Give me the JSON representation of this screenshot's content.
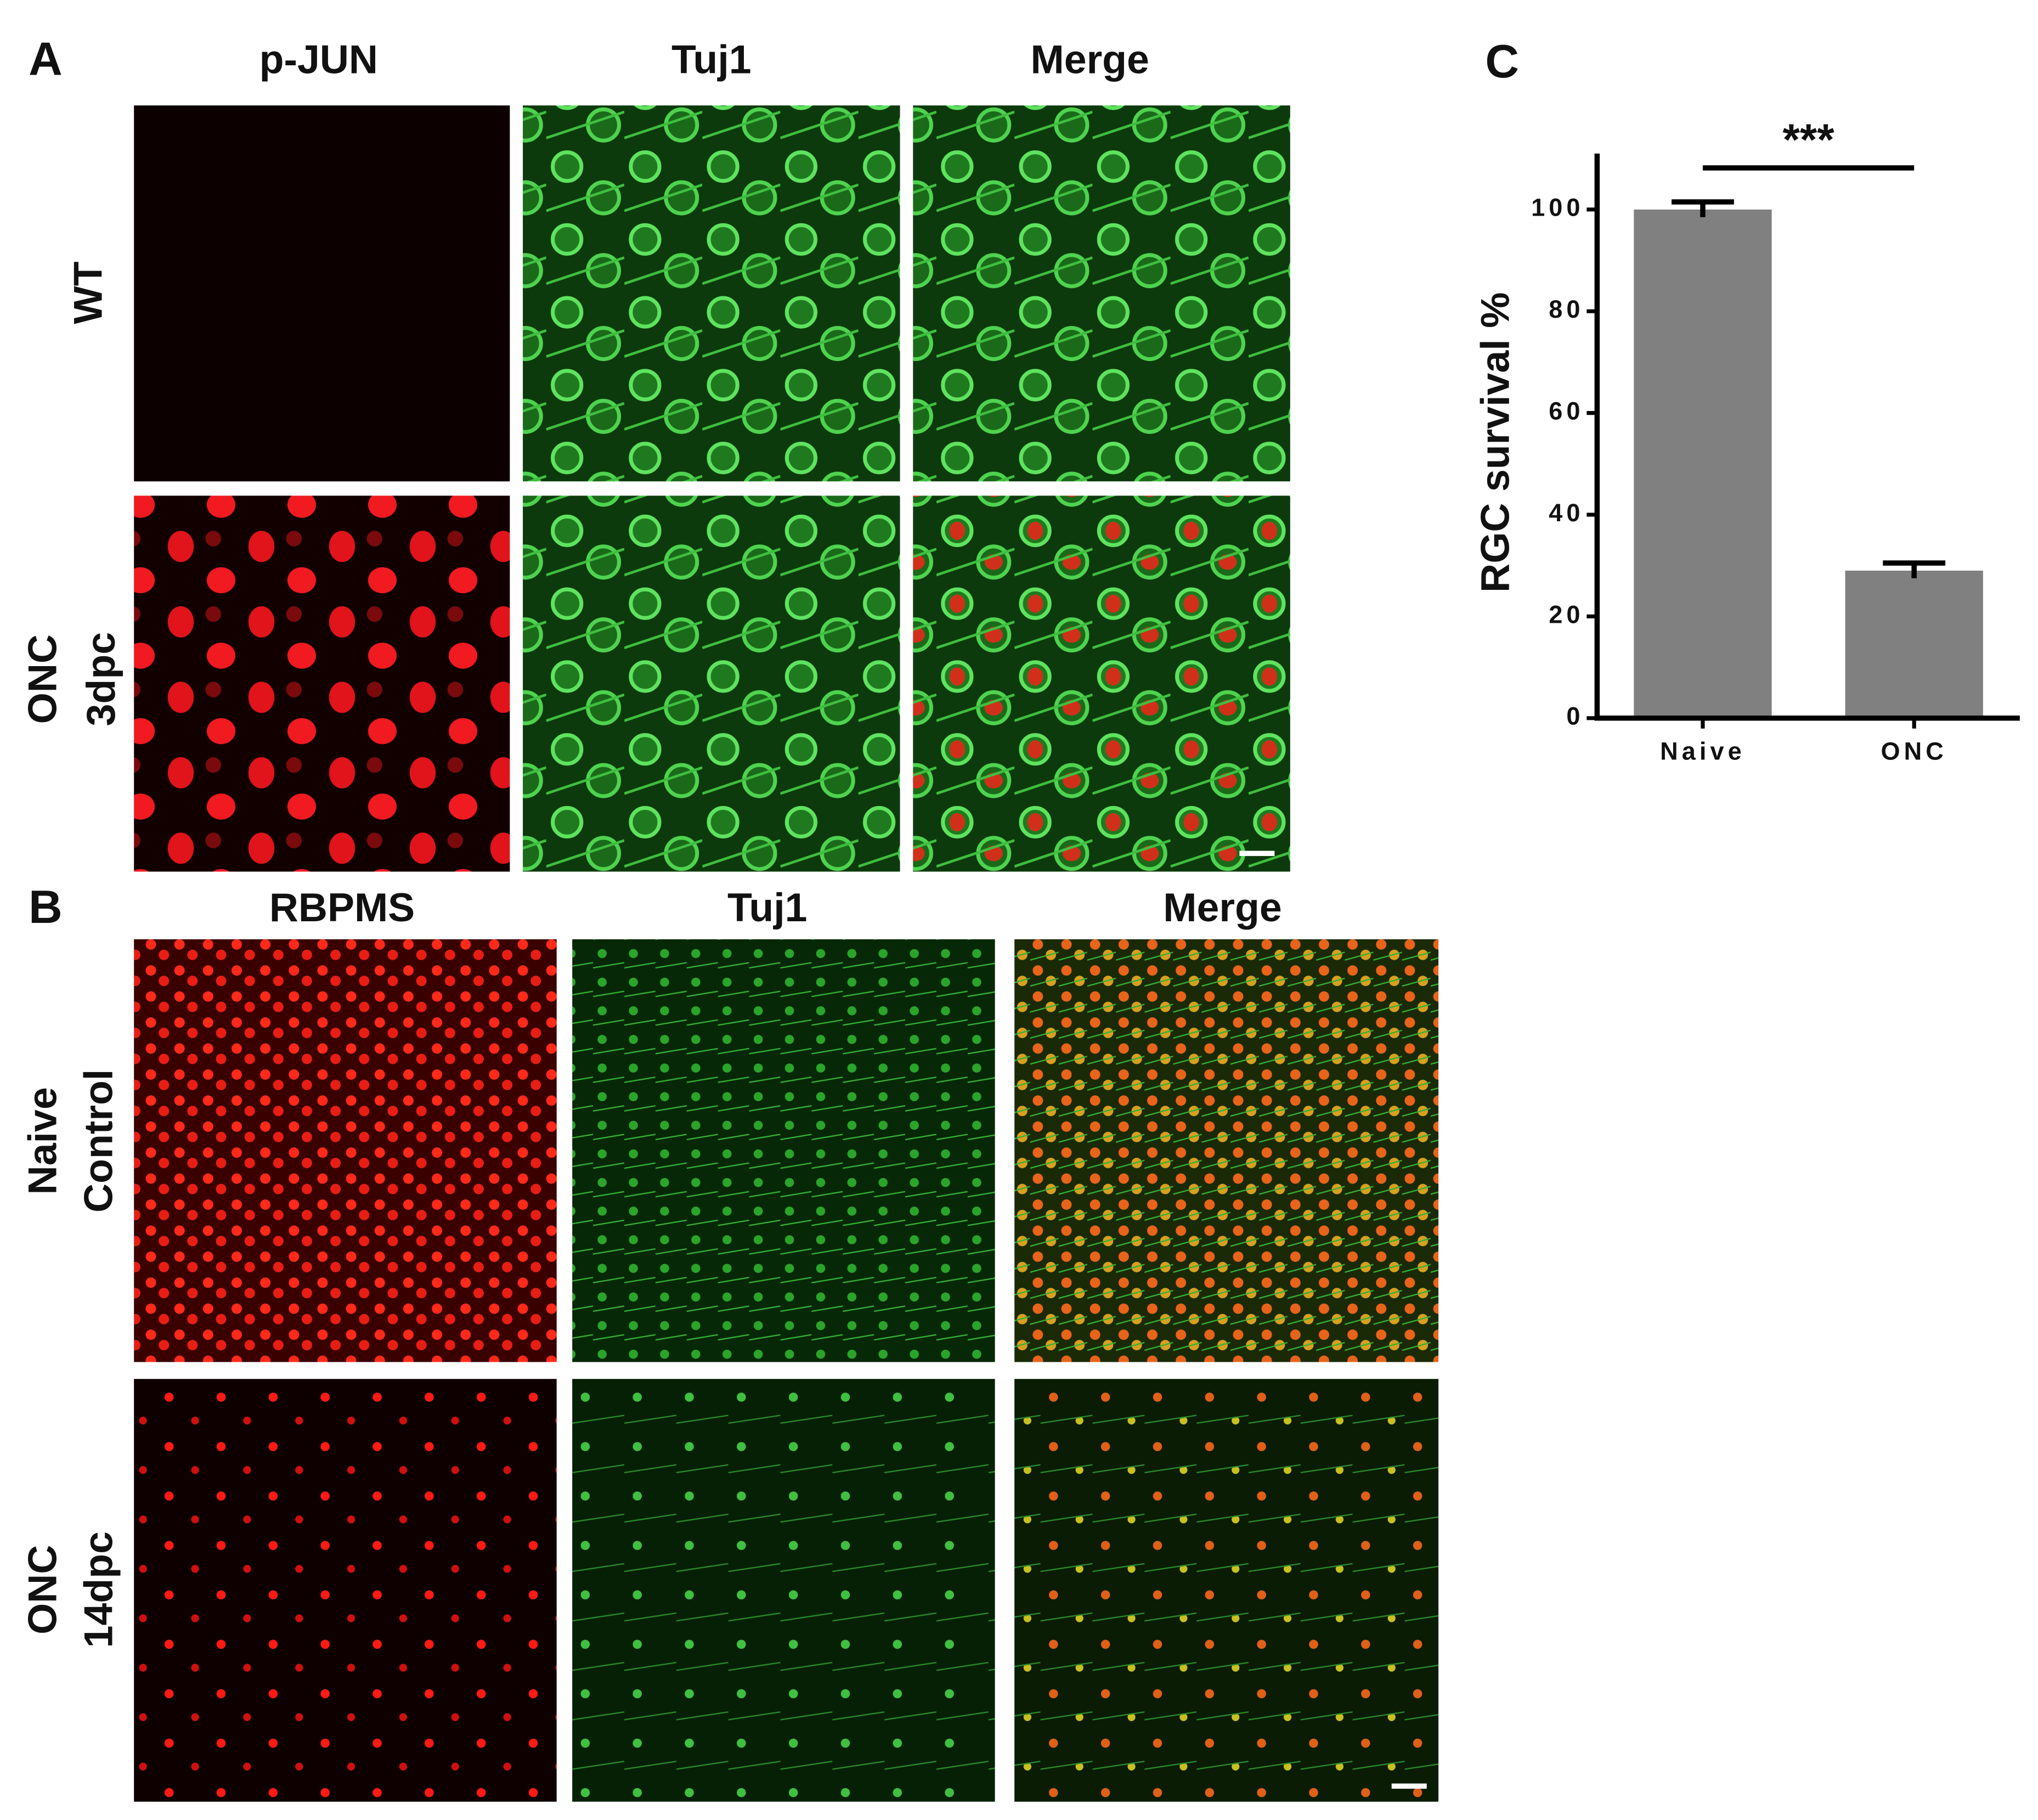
{
  "panel_a": {
    "label": "A",
    "columns": [
      "p-JUN",
      "Tuj1",
      "Merge"
    ],
    "rows": [
      [
        "WT"
      ],
      [
        "ONC",
        "3dpc"
      ]
    ]
  },
  "panel_b": {
    "label": "B",
    "columns": [
      "RBPMS",
      "Tuj1",
      "Merge"
    ],
    "rows": [
      [
        "Naive",
        "Control"
      ],
      [
        "ONC",
        "14dpc"
      ]
    ]
  },
  "chart_data": {
    "type": "bar",
    "panel_label": "C",
    "ylabel": "RGC survival %",
    "categories": [
      "Naive",
      "ONC"
    ],
    "values": [
      100,
      29
    ],
    "errors": [
      1.5,
      1.5
    ],
    "color": "#808080",
    "ylim": [
      0,
      111
    ],
    "yticks": [
      0,
      20,
      40,
      60,
      80,
      100
    ],
    "annotation": "***"
  }
}
